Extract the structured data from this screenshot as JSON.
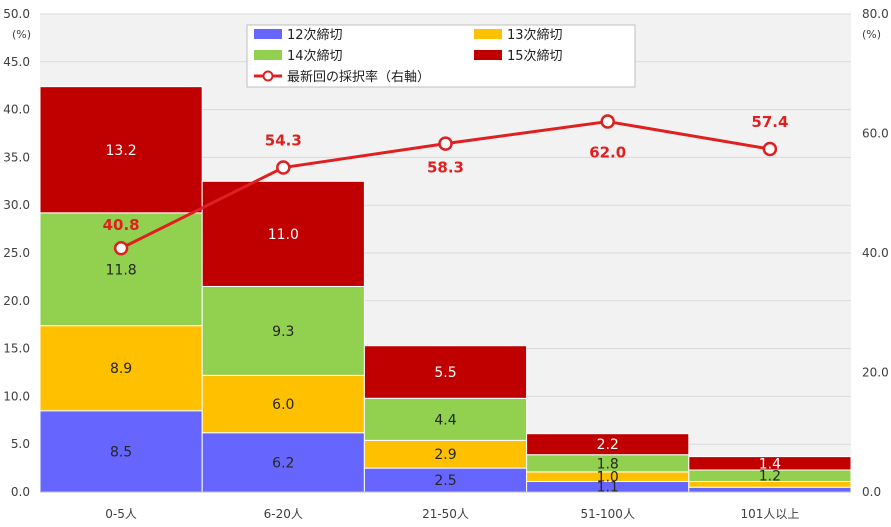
{
  "chart_data": {
    "type": "bar",
    "stacked": true,
    "categories": [
      "0-5人",
      "6-20人",
      "21-50人",
      "51-100人",
      "101人以上"
    ],
    "series": [
      {
        "name": "12次締切",
        "color": "#6666ff",
        "values": [
          8.5,
          6.2,
          2.5,
          1.1,
          0.5
        ]
      },
      {
        "name": "13次締切",
        "color": "#ffc000",
        "values": [
          8.9,
          6.0,
          2.9,
          1.0,
          0.6
        ]
      },
      {
        "name": "14次締切",
        "color": "#92d050",
        "values": [
          11.8,
          9.3,
          4.4,
          1.8,
          1.2
        ]
      },
      {
        "name": "15次締切",
        "color": "#c00000",
        "values": [
          13.2,
          11.0,
          5.5,
          2.2,
          1.4
        ]
      }
    ],
    "segment_labels": [
      [
        "8.5",
        "6.2",
        "2.5",
        "1.1",
        ""
      ],
      [
        "8.9",
        "6.0",
        "2.9",
        "1.0",
        ""
      ],
      [
        "11.8",
        "9.3",
        "4.4",
        "1.8",
        "1.2"
      ],
      [
        "13.2",
        "11.0",
        "5.5",
        "2.2",
        "1.4"
      ]
    ],
    "line": {
      "name": "最新回の採択率（右軸）",
      "color": "#e02020",
      "axis": "right",
      "values": [
        40.8,
        54.3,
        58.3,
        62.0,
        57.4
      ],
      "labels": [
        "40.8",
        "54.3",
        "58.3",
        "62.0",
        "57.4"
      ]
    },
    "y_left": {
      "unit": "(%)",
      "range": [
        0,
        50
      ],
      "ticks": [
        "0.0",
        "5.0",
        "10.0",
        "15.0",
        "20.0",
        "25.0",
        "30.0",
        "35.0",
        "40.0",
        "45.0",
        "50.0"
      ]
    },
    "y_right": {
      "unit": "(%)",
      "range": [
        0,
        80
      ],
      "ticks": [
        "0.0",
        "20.0",
        "40.0",
        "60.0",
        "80.0"
      ]
    },
    "grid": true,
    "legend_position": "top-center"
  }
}
